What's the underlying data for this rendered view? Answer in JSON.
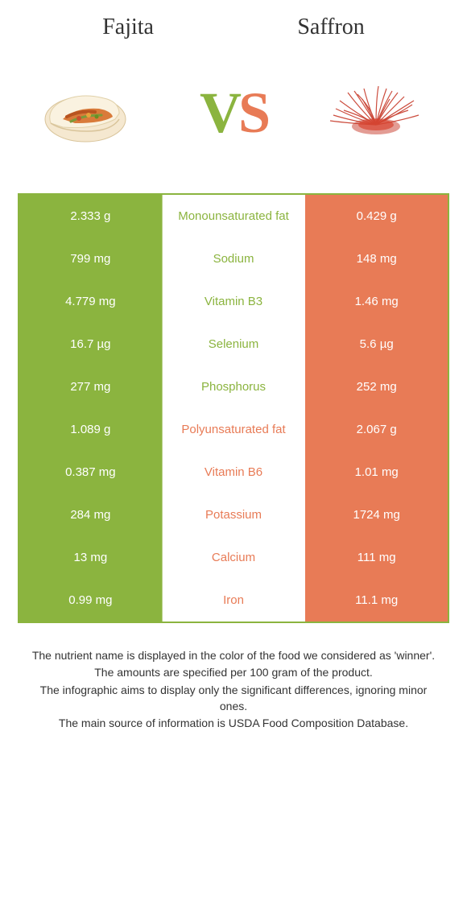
{
  "colors": {
    "left": "#8bb43f",
    "right": "#e87b56",
    "border": "#8bb43f",
    "text": "#333333"
  },
  "header": {
    "left_title": "Fajita",
    "right_title": "Saffron"
  },
  "vs": {
    "v": "V",
    "s": "S"
  },
  "rows": [
    {
      "left": "2.333 g",
      "label": "Monounsaturated fat",
      "right": "0.429 g",
      "winner": "left"
    },
    {
      "left": "799 mg",
      "label": "Sodium",
      "right": "148 mg",
      "winner": "left"
    },
    {
      "left": "4.779 mg",
      "label": "Vitamin B3",
      "right": "1.46 mg",
      "winner": "left"
    },
    {
      "left": "16.7 µg",
      "label": "Selenium",
      "right": "5.6 µg",
      "winner": "left"
    },
    {
      "left": "277 mg",
      "label": "Phosphorus",
      "right": "252 mg",
      "winner": "left"
    },
    {
      "left": "1.089 g",
      "label": "Polyunsaturated fat",
      "right": "2.067 g",
      "winner": "right"
    },
    {
      "left": "0.387 mg",
      "label": "Vitamin B6",
      "right": "1.01 mg",
      "winner": "right"
    },
    {
      "left": "284 mg",
      "label": "Potassium",
      "right": "1724 mg",
      "winner": "right"
    },
    {
      "left": "13 mg",
      "label": "Calcium",
      "right": "111 mg",
      "winner": "right"
    },
    {
      "left": "0.99 mg",
      "label": "Iron",
      "right": "11.1 mg",
      "winner": "right"
    }
  ],
  "footer": {
    "line1": "The nutrient name is displayed in the color of the food we considered as 'winner'.",
    "line2": "The amounts are specified per 100 gram of the product.",
    "line3": "The infographic aims to display only the significant differences, ignoring minor ones.",
    "line4": "The main source of information is USDA Food Composition Database."
  }
}
